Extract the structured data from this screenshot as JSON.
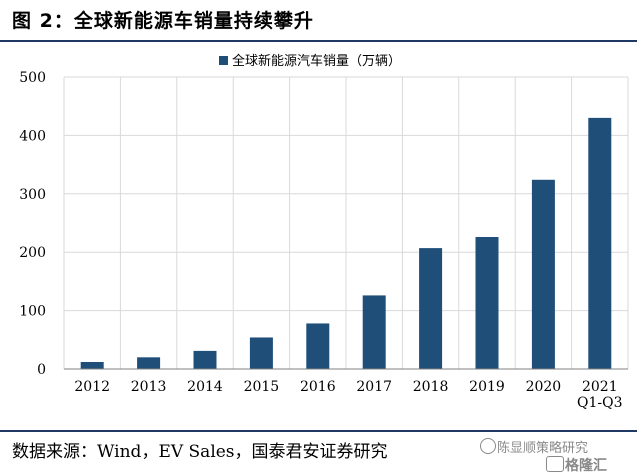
{
  "title": "图 2：全球新能源车销量持续攀升",
  "source": "数据来源：Wind，EV Sales，国泰君安证券研究",
  "watermark": {
    "line1": "陈显顺策略研究",
    "line2": "格隆汇"
  },
  "colors": {
    "bar": "#1f4e79",
    "grid": "#d9d9d9",
    "rule": "#1f3864"
  },
  "chart_data": {
    "type": "bar",
    "categories": [
      "2012",
      "2013",
      "2014",
      "2015",
      "2016",
      "2017",
      "2018",
      "2019",
      "2020",
      "2021\nQ1-Q3"
    ],
    "series": [
      {
        "name": "全球新能源汽车销量（万辆）",
        "values": [
          12,
          20,
          31,
          54,
          78,
          126,
          207,
          226,
          324,
          430
        ]
      }
    ],
    "ylim": [
      0,
      500
    ],
    "yticks": [
      0,
      100,
      200,
      300,
      400,
      500
    ],
    "grid": true,
    "legend": "top-center"
  }
}
